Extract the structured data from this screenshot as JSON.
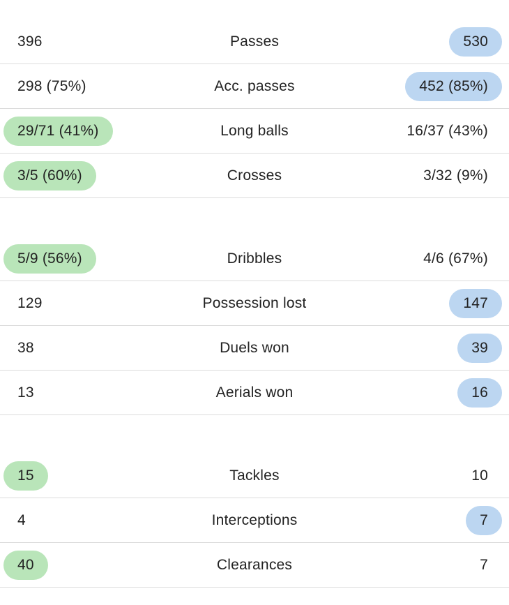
{
  "colors": {
    "home_highlight": "#b9e5b9",
    "away_highlight": "#bcd6f1",
    "divider": "#dcdcdc",
    "text": "#222222"
  },
  "groups": [
    {
      "rows": [
        {
          "label": "Passes",
          "home": "396",
          "away": "530",
          "highlight": "away"
        },
        {
          "label": "Acc. passes",
          "home": "298 (75%)",
          "away": "452 (85%)",
          "highlight": "away"
        },
        {
          "label": "Long balls",
          "home": "29/71 (41%)",
          "away": "16/37 (43%)",
          "highlight": "home"
        },
        {
          "label": "Crosses",
          "home": "3/5 (60%)",
          "away": "3/32 (9%)",
          "highlight": "home"
        }
      ]
    },
    {
      "rows": [
        {
          "label": "Dribbles",
          "home": "5/9 (56%)",
          "away": "4/6 (67%)",
          "highlight": "home"
        },
        {
          "label": "Possession lost",
          "home": "129",
          "away": "147",
          "highlight": "away"
        },
        {
          "label": "Duels won",
          "home": "38",
          "away": "39",
          "highlight": "away"
        },
        {
          "label": "Aerials won",
          "home": "13",
          "away": "16",
          "highlight": "away"
        }
      ]
    },
    {
      "rows": [
        {
          "label": "Tackles",
          "home": "15",
          "away": "10",
          "highlight": "home"
        },
        {
          "label": "Interceptions",
          "home": "4",
          "away": "7",
          "highlight": "away"
        },
        {
          "label": "Clearances",
          "home": "40",
          "away": "7",
          "highlight": "home"
        }
      ]
    }
  ]
}
